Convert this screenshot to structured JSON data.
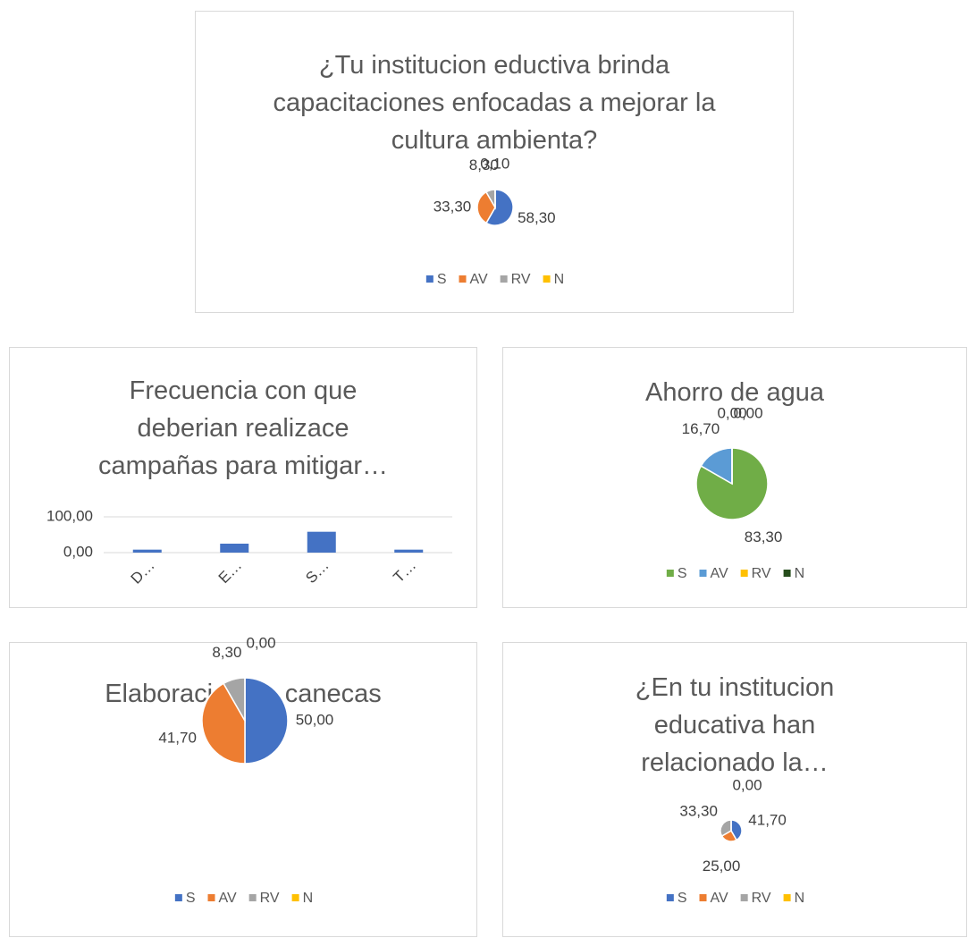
{
  "chart_data": [
    {
      "type": "pie",
      "title": "¿Tu institucion eductiva brinda capacitaciones enfocadas a mejorar la cultura ambienta?",
      "categories": [
        "S",
        "AV",
        "RV",
        "N"
      ],
      "values": [
        58.3,
        33.3,
        8.3,
        0.1
      ],
      "value_labels": [
        "58,30",
        "33,30",
        "8,30",
        "0,10"
      ],
      "colors": [
        "#4472c4",
        "#ed7d31",
        "#a5a5a5",
        "#ffc000"
      ]
    },
    {
      "type": "bar",
      "title": "Frecuencia con que deberian realizace campañas para mitigar…",
      "categories": [
        "D…",
        "E…",
        "S…",
        "T…"
      ],
      "values": [
        8.3,
        25,
        58.3,
        8.3
      ],
      "color": "#4472c4",
      "ylim": [
        0,
        100
      ],
      "yticks": [
        {
          "value": 0,
          "label": "0,00"
        },
        {
          "value": 100,
          "label": "100,00"
        }
      ],
      "grid": true
    },
    {
      "type": "pie",
      "title": "Ahorro de agua",
      "categories": [
        "S",
        "AV",
        "RV",
        "N"
      ],
      "values": [
        83.3,
        16.7,
        0,
        0
      ],
      "value_labels": [
        "83,30",
        "16,70",
        "0,00",
        "0,00"
      ],
      "colors": [
        "#70ad47",
        "#5b9bd5",
        "#ffc000",
        "#264d1c"
      ]
    },
    {
      "type": "pie",
      "title": "Elaboracion de canecas",
      "categories": [
        "S",
        "AV",
        "RV",
        "N"
      ],
      "values": [
        50,
        41.7,
        8.3,
        0
      ],
      "value_labels": [
        "50,00",
        "41,70",
        "8,30",
        "0,00"
      ],
      "colors": [
        "#4472c4",
        "#ed7d31",
        "#a5a5a5",
        "#ffc000"
      ]
    },
    {
      "type": "pie",
      "title": "¿En tu institucion educativa han relacionado la…",
      "categories": [
        "S",
        "AV",
        "RV",
        "N"
      ],
      "values": [
        41.7,
        25,
        33.3,
        0
      ],
      "value_labels": [
        "41,70",
        "25,00",
        "33,30",
        "0,00"
      ],
      "colors": [
        "#4472c4",
        "#ed7d31",
        "#a5a5a5",
        "#ffc000"
      ]
    }
  ]
}
